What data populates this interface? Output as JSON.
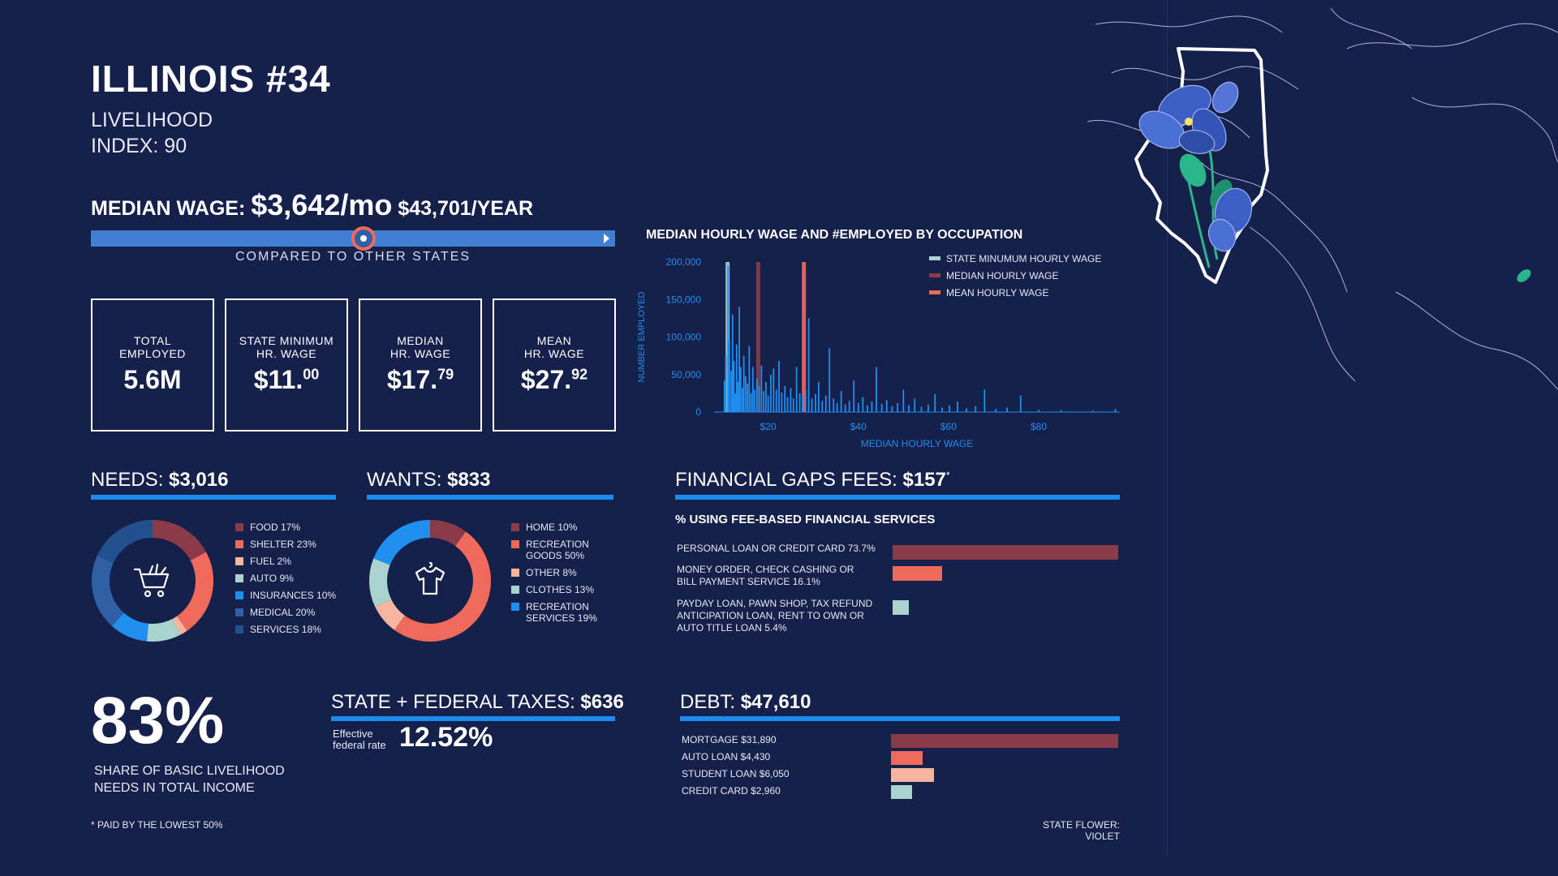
{
  "header": {
    "title": "ILLINOIS #34",
    "subtitle_line1": "LIVELIHOOD",
    "subtitle_line2": "INDEX: 90"
  },
  "median_wage": {
    "label": "MEDIAN WAGE:",
    "monthly": "$3,642/mo",
    "yearly": "$43,701/YEAR",
    "comparison_caption": "COMPARED TO OTHER STATES",
    "comparison_position": 0.52
  },
  "stats": [
    {
      "label1": "TOTAL",
      "label2": "EMPLOYED",
      "value": "5.6M",
      "sup": ""
    },
    {
      "label1": "STATE MINIMUM",
      "label2": "HR. WAGE",
      "value": "$11.",
      "sup": "00"
    },
    {
      "label1": "MEDIAN",
      "label2": "HR. WAGE",
      "value": "$17.",
      "sup": "79"
    },
    {
      "label1": "MEAN",
      "label2": "HR. WAGE",
      "value": "$27.",
      "sup": "92"
    }
  ],
  "occupation_chart_title": "MEDIAN HOURLY WAGE AND #EMPLOYED BY OCCUPATION",
  "needs": {
    "label": "NEEDS:",
    "value": "$3,016",
    "icon": "shopping-cart-icon"
  },
  "wants": {
    "label": "WANTS:",
    "value": "$833",
    "icon": "shirt-icon"
  },
  "fees": {
    "label": "FINANCIAL GAPS FEES:",
    "value": "$157",
    "asterisk": "*",
    "subtitle": "% USING FEE-BASED FINANCIAL SERVICES"
  },
  "share": {
    "pct": "83%",
    "line1": "SHARE OF BASIC LIVELIHOOD",
    "line2": "NEEDS IN TOTAL INCOME"
  },
  "taxes": {
    "label": "STATE + FEDERAL TAXES:",
    "value": "$636",
    "rate_label1": "Effective",
    "rate_label2": "federal rate",
    "rate_value": "12.52%"
  },
  "debt": {
    "label": "DEBT:",
    "value": "$47,610"
  },
  "footnote": "* PAID BY THE LOWEST 50%",
  "state_flower": "STATE FLOWER: VIOLET",
  "colors": {
    "background": "#15204b",
    "accent_blue": "#1b8cf0",
    "maroon": "#8b3a4a",
    "coral": "#f06a5c",
    "peach": "#f5b5a0",
    "mint": "#a8d3cf",
    "bright_blue": "#1f8ff0",
    "steel_blue": "#2f5fa5",
    "navy_blue": "#22508f"
  },
  "chart_data": [
    {
      "type": "bar",
      "title": "MEDIAN HOURLY WAGE AND #EMPLOYED BY OCCUPATION",
      "xlabel": "MEDIAN HOURLY WAGE",
      "ylabel": "NUMBER EMPLOYED",
      "xlim": [
        8,
        98
      ],
      "ylim": [
        0,
        200000
      ],
      "xticks": [
        "$20",
        "$40",
        "$60",
        "$80"
      ],
      "yticks": [
        "200,000",
        "150,000",
        "100,000",
        "50,000",
        "0"
      ],
      "legend_position": "top-right",
      "reference_lines": [
        {
          "name": "STATE MINUMUM HOURLY WAGE",
          "x": 11.0,
          "color": "#a8d3cf"
        },
        {
          "name": "MEDIAN HOURLY WAGE",
          "x": 17.79,
          "color": "#8b3a4a"
        },
        {
          "name": "MEAN HOURLY WAGE",
          "x": 27.92,
          "color": "#f06a5c"
        }
      ],
      "x": [
        10.3,
        10.6,
        11.1,
        11.4,
        11.8,
        12.1,
        12.4,
        12.7,
        13.0,
        13.3,
        13.6,
        13.9,
        14.3,
        14.6,
        15.0,
        15.4,
        15.8,
        16.2,
        16.6,
        17.0,
        17.5,
        18.0,
        18.5,
        19.0,
        19.5,
        20.0,
        20.6,
        21.2,
        21.8,
        22.4,
        23.0,
        23.7,
        24.3,
        25.0,
        25.6,
        26.3,
        27.0,
        27.6,
        28.3,
        29.0,
        29.7,
        30.5,
        31.2,
        32.0,
        32.8,
        33.6,
        34.5,
        35.3,
        36.2,
        37.1,
        38.0,
        39.0,
        40.0,
        41.0,
        42.0,
        43.0,
        44.0,
        45.2,
        46.3,
        47.5,
        48.7,
        50.0,
        51.2,
        52.5,
        54.0,
        55.5,
        57.0,
        58.6,
        60.2,
        62.0,
        64.0,
        66.0,
        68.0,
        70.5,
        73.0,
        76.0,
        80.0,
        85.0,
        92.0,
        97.0
      ],
      "values": [
        42000,
        75000,
        195000,
        95000,
        55000,
        130000,
        68000,
        25000,
        90000,
        40000,
        140000,
        60000,
        32000,
        75000,
        48000,
        38000,
        88000,
        25000,
        60000,
        30000,
        45000,
        35000,
        62000,
        28000,
        40000,
        22000,
        50000,
        58000,
        30000,
        68000,
        26000,
        35000,
        20000,
        32000,
        18000,
        60000,
        25000,
        22000,
        30000,
        125000,
        18000,
        24000,
        40000,
        15000,
        22000,
        85000,
        18000,
        12000,
        28000,
        10000,
        15000,
        42000,
        12000,
        20000,
        9000,
        14000,
        60000,
        11000,
        16000,
        8000,
        12000,
        30000,
        9000,
        18000,
        7000,
        10000,
        24000,
        6000,
        9000,
        14000,
        5000,
        8000,
        30000,
        4000,
        6000,
        22000,
        3000,
        2500,
        2000,
        4000
      ]
    },
    {
      "type": "pie",
      "title": "NEEDS: $3,016",
      "categories": [
        "FOOD 17%",
        "SHELTER 23%",
        "FUEL 2%",
        "AUTO 9%",
        "INSURANCES 10%",
        "MEDICAL 20%",
        "SERVICES 18%"
      ],
      "values": [
        17,
        23,
        2,
        9,
        10,
        20,
        18
      ],
      "colors": [
        "#8b3a4a",
        "#f06a5c",
        "#f5b5a0",
        "#a8d3cf",
        "#1f8ff0",
        "#2f5fa5",
        "#22508f"
      ]
    },
    {
      "type": "pie",
      "title": "WANTS: $833",
      "categories": [
        "HOME 10%",
        "RECREATION GOODS 50%",
        "OTHER 8%",
        "CLOTHES 13%",
        "RECREATION SERVICES 19%"
      ],
      "values": [
        10,
        50,
        8,
        13,
        19
      ],
      "colors": [
        "#8b3a4a",
        "#f06a5c",
        "#f5b5a0",
        "#a8d3cf",
        "#1f8ff0"
      ]
    },
    {
      "type": "bar",
      "title": "% USING FEE-BASED FINANCIAL SERVICES",
      "categories": [
        "PERSONAL LOAN OR CREDIT CARD 73.7%",
        "MONEY ORDER, CHECK CASHING OR|BILL PAYMENT SERVICE 16.1%",
        "PAYDAY LOAN, PAWN SHOP, TAX REFUND|ANTICIPATION LOAN, RENT TO OWN OR|AUTO TITLE LOAN 5.4%"
      ],
      "values": [
        73.7,
        16.1,
        5.4
      ],
      "xlim": [
        0,
        73.7
      ],
      "colors": [
        "#8b3a4a",
        "#f06a5c",
        "#a8d3cf"
      ]
    },
    {
      "type": "bar",
      "title": "DEBT: $47,610",
      "categories": [
        "MORTGAGE $31,890",
        "AUTO LOAN $4,430",
        "STUDENT LOAN $6,050",
        "CREDIT CARD $2,960"
      ],
      "values": [
        31890,
        4430,
        6050,
        2960
      ],
      "xlim": [
        0,
        31890
      ],
      "colors": [
        "#8b3a4a",
        "#f06a5c",
        "#f5b5a0",
        "#a8d3cf"
      ]
    }
  ]
}
